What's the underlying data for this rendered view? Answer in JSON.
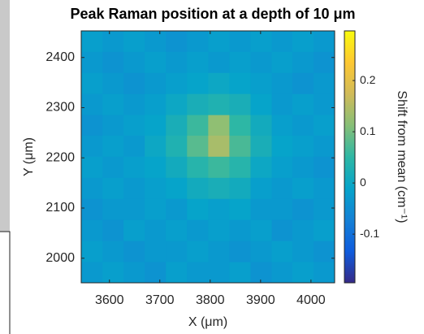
{
  "chart_data": {
    "type": "heatmap",
    "title": "Peak Raman position at a depth of 10 μm",
    "x_label": "X (μm)",
    "y_label": "Y (μm)",
    "colorbar_label": "Shift from mean (cm⁻¹)",
    "xlim": [
      3544,
      4047
    ],
    "xticks": [
      3600,
      3700,
      3800,
      3900,
      4000
    ],
    "ylim": [
      1951,
      2453
    ],
    "yticks": [
      2000,
      2100,
      2200,
      2300,
      2400
    ],
    "clim": [
      -0.195,
      0.297
    ],
    "cticks": [
      -0.1,
      0,
      0.1,
      0.2
    ],
    "colormap": [
      "#352a87",
      "#0f5cdd",
      "#1481d6",
      "#06a4ca",
      "#2eb7a4",
      "#87bf77",
      "#d1bb59",
      "#fec832",
      "#f9fb0e"
    ],
    "x": [
      3565,
      3607,
      3649,
      3691,
      3733,
      3775,
      3817,
      3859,
      3901,
      3943,
      3984,
      4026
    ],
    "y": [
      1972,
      2014,
      2056,
      2098,
      2140,
      2182,
      2224,
      2266,
      2307,
      2349,
      2391,
      2433
    ],
    "z": [
      [
        -0.03,
        -0.02,
        -0.03,
        -0.04,
        -0.02,
        -0.03,
        -0.03,
        -0.02,
        -0.04,
        -0.03,
        -0.02,
        -0.03
      ],
      [
        -0.02,
        -0.03,
        -0.04,
        -0.03,
        -0.03,
        -0.02,
        -0.03,
        -0.04,
        -0.03,
        -0.02,
        -0.03,
        -0.04
      ],
      [
        -0.03,
        -0.04,
        -0.02,
        -0.03,
        -0.02,
        -0.03,
        -0.02,
        -0.03,
        -0.02,
        -0.04,
        -0.03,
        -0.02
      ],
      [
        -0.04,
        -0.03,
        -0.03,
        -0.02,
        -0.03,
        -0.01,
        -0.02,
        -0.01,
        -0.03,
        -0.03,
        -0.04,
        -0.03
      ],
      [
        -0.03,
        -0.02,
        -0.03,
        -0.02,
        -0.01,
        0.01,
        0.02,
        0.01,
        -0.02,
        -0.03,
        -0.02,
        -0.03
      ],
      [
        -0.02,
        -0.03,
        -0.02,
        -0.01,
        0.01,
        0.04,
        0.06,
        0.04,
        0.0,
        -0.02,
        -0.03,
        -0.04
      ],
      [
        -0.03,
        -0.02,
        -0.03,
        0.0,
        0.03,
        0.08,
        0.14,
        0.07,
        0.02,
        -0.01,
        -0.02,
        -0.03
      ],
      [
        -0.04,
        -0.03,
        -0.02,
        -0.01,
        0.02,
        0.06,
        0.12,
        0.05,
        0.01,
        -0.02,
        -0.03,
        -0.02
      ],
      [
        -0.03,
        -0.02,
        -0.03,
        -0.02,
        0.0,
        0.02,
        0.03,
        0.02,
        -0.01,
        -0.03,
        -0.02,
        -0.03
      ],
      [
        -0.02,
        -0.03,
        -0.04,
        -0.03,
        -0.02,
        -0.01,
        0.0,
        -0.01,
        -0.02,
        -0.03,
        -0.04,
        -0.03
      ],
      [
        -0.03,
        -0.04,
        -0.03,
        -0.02,
        -0.03,
        -0.02,
        -0.03,
        -0.02,
        -0.03,
        -0.02,
        -0.03,
        -0.04
      ],
      [
        -0.02,
        -0.03,
        -0.02,
        -0.03,
        -0.04,
        -0.03,
        -0.02,
        -0.03,
        -0.02,
        -0.03,
        -0.02,
        -0.03
      ]
    ]
  }
}
